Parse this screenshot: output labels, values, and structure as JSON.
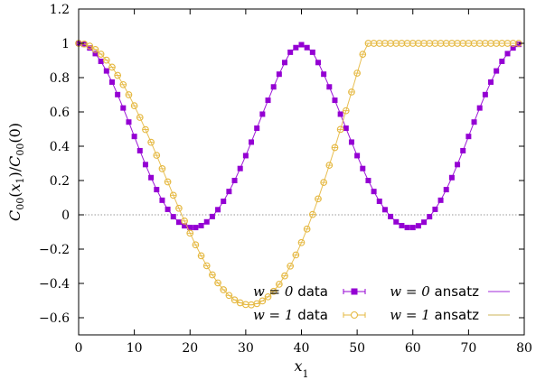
{
  "chart_data": {
    "type": "scatter",
    "xlabel": "x_1",
    "ylabel": "C_00(x_1)/C_00(0)",
    "xlim": [
      0,
      80
    ],
    "ylim": [
      -0.7,
      1.2
    ],
    "x_ticks": [
      0,
      10,
      20,
      30,
      40,
      50,
      60,
      70,
      80
    ],
    "y_ticks": [
      -0.6,
      -0.4,
      -0.2,
      0,
      0.2,
      0.4,
      0.6,
      0.8,
      1,
      1.2
    ],
    "x_tick_labels": [
      "0",
      "10",
      "20",
      "30",
      "40",
      "50",
      "60",
      "70",
      "80"
    ],
    "y_tick_labels": [
      "−0.6",
      "−0.4",
      "−0.2",
      "0",
      "0.2",
      "0.4",
      "0.6",
      "0.8",
      "1",
      "1.2"
    ],
    "zero_line": true,
    "grid": false,
    "legend_position": "bottom-right",
    "x": [
      0,
      1,
      2,
      3,
      4,
      5,
      6,
      7,
      8,
      9,
      10,
      11,
      12,
      13,
      14,
      15,
      16,
      17,
      18,
      19,
      20,
      21,
      22,
      23,
      24,
      25,
      26,
      27,
      28,
      29,
      30,
      31,
      32,
      33,
      34,
      35,
      36,
      37,
      38,
      39,
      40,
      41,
      42,
      43,
      44,
      45,
      46,
      47,
      48,
      49,
      50,
      51,
      52,
      53,
      54,
      55,
      56,
      57,
      58,
      59,
      60,
      61,
      62,
      63,
      64,
      65,
      66,
      67,
      68,
      69,
      70,
      71,
      72,
      73,
      74,
      75,
      76,
      77,
      78,
      79
    ],
    "series": [
      {
        "name": "w = 0 data",
        "legend_math": "w = 0",
        "legend_text": " data",
        "marker": "square",
        "color": "#9400d3",
        "values": [
          1.0,
          0.994,
          0.973,
          0.94,
          0.895,
          0.839,
          0.774,
          0.701,
          0.623,
          0.541,
          0.457,
          0.374,
          0.293,
          0.217,
          0.147,
          0.085,
          0.032,
          -0.011,
          -0.043,
          -0.064,
          -0.074,
          -0.074,
          -0.063,
          -0.041,
          -0.01,
          0.03,
          0.079,
          0.136,
          0.2,
          0.27,
          0.345,
          0.424,
          0.505,
          0.587,
          0.668,
          0.746,
          0.82,
          0.888,
          0.948,
          0.975,
          0.992,
          0.975,
          0.948,
          0.888,
          0.82,
          0.746,
          0.668,
          0.587,
          0.505,
          0.424,
          0.345,
          0.27,
          0.2,
          0.136,
          0.079,
          0.03,
          -0.01,
          -0.041,
          -0.063,
          -0.074,
          -0.074,
          -0.064,
          -0.043,
          -0.011,
          0.032,
          0.085,
          0.147,
          0.217,
          0.293,
          0.374,
          0.457,
          0.541,
          0.623,
          0.701,
          0.774,
          0.839,
          0.895,
          0.94,
          0.973,
          0.994
        ]
      },
      {
        "name": "w = 1 data",
        "legend_math": "w = 1",
        "legend_text": " data",
        "marker": "circle",
        "color": "#e5b840",
        "values": [
          1.0,
          0.996,
          0.984,
          0.964,
          0.937,
          0.902,
          0.861,
          0.813,
          0.759,
          0.7,
          0.636,
          0.568,
          0.497,
          0.423,
          0.347,
          0.269,
          0.192,
          0.114,
          0.038,
          -0.036,
          -0.107,
          -0.175,
          -0.239,
          -0.297,
          -0.35,
          -0.397,
          -0.437,
          -0.47,
          -0.496,
          -0.513,
          -0.523,
          -0.525,
          -0.518,
          -0.502,
          -0.478,
          -0.446,
          -0.405,
          -0.356,
          -0.299,
          -0.234,
          -0.162,
          -0.083,
          0.002,
          0.093,
          0.189,
          0.289,
          0.392,
          0.498,
          0.607,
          0.716,
          0.826,
          0.936,
          1.0,
          1.0,
          1.0,
          1.0,
          1.0,
          1.0,
          1.0,
          1.0,
          1.0,
          1.0,
          1.0,
          1.0,
          1.0,
          1.0,
          1.0,
          1.0,
          1.0,
          1.0,
          1.0,
          1.0,
          1.0,
          1.0,
          1.0,
          1.0,
          1.0,
          1.0,
          1.0,
          1.0
        ]
      },
      {
        "name": "w = 0 ansatz",
        "legend_math": "w = 0",
        "legend_text": " ansatz",
        "marker": "none",
        "color": "#b454e0"
      },
      {
        "name": "w = 1 ansatz",
        "legend_math": "w = 1",
        "legend_text": " ansatz",
        "marker": "none",
        "color": "#d8c47a"
      }
    ]
  }
}
